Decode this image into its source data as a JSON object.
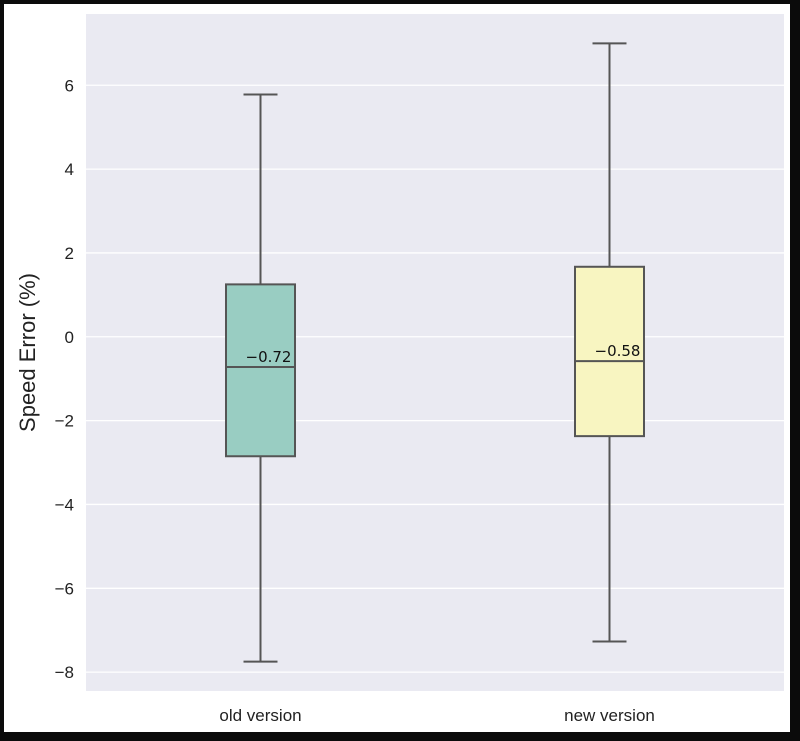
{
  "chart_data": {
    "type": "boxplot",
    "title": "",
    "xlabel": "",
    "ylabel": "Speed Error (%)",
    "ylim": [
      -8.45,
      7.7
    ],
    "yticks": [
      6,
      4,
      2,
      0,
      -2,
      -4,
      -6,
      -8
    ],
    "ytick_labels": [
      "6",
      "4",
      "2",
      "0",
      "−2",
      "−4",
      "−6",
      "−8"
    ],
    "grid": true,
    "background": "#eaeaf2",
    "categories": [
      "old version",
      "new version"
    ],
    "boxes": [
      {
        "name": "old version",
        "whisker_low": -7.75,
        "q1": -2.85,
        "median": -0.72,
        "q3": 1.25,
        "whisker_high": 5.78,
        "median_label": "−0.72",
        "color": "#99cdc2"
      },
      {
        "name": "new version",
        "whisker_low": -7.27,
        "q1": -2.37,
        "median": -0.58,
        "q3": 1.67,
        "whisker_high": 7.0,
        "median_label": "−0.58",
        "color": "#f8f5c1"
      }
    ],
    "line_color": "#555555"
  }
}
